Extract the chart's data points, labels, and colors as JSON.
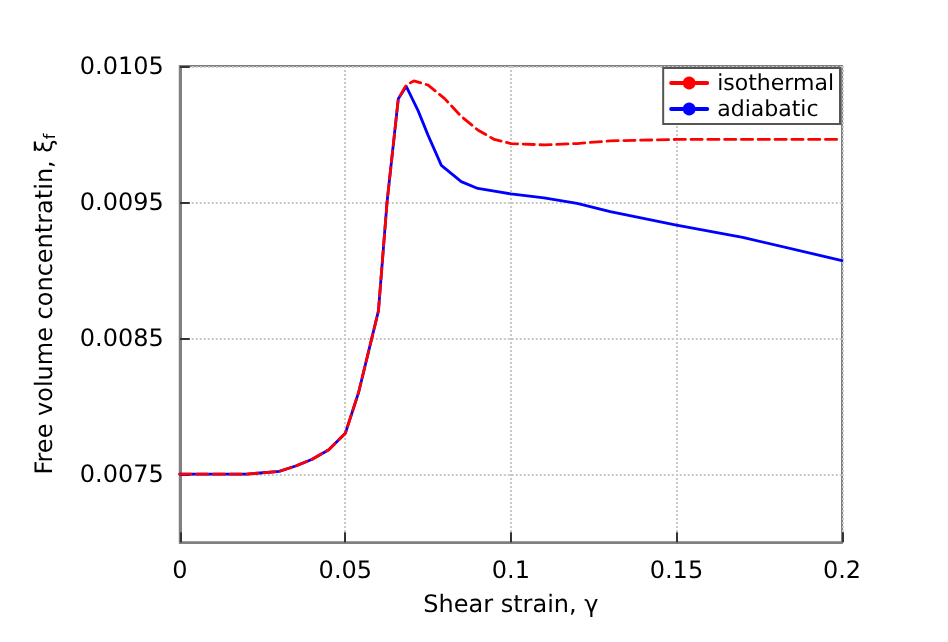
{
  "chart_data": {
    "type": "line",
    "xlabel": "Shear strain, γ",
    "ylabel": "Free volume concentratin, ξ$_{f}$",
    "xlim": [
      0,
      0.2
    ],
    "xticks": [
      0,
      0.05,
      0.1,
      0.15,
      0.2
    ],
    "ylim": [
      0.007,
      0.0105
    ],
    "yticks": [
      0.0075,
      0.0085,
      0.0095,
      0.0105
    ],
    "grid": true,
    "legend": "top right",
    "marker": "none",
    "series": [
      {
        "name": "isothermal",
        "color": "#ff0000",
        "line_style": "dashed",
        "x": [
          0,
          0.01,
          0.02,
          0.03,
          0.035,
          0.04,
          0.045,
          0.05,
          0.054,
          0.058,
          0.06,
          0.0626,
          0.066,
          0.0684,
          0.0707,
          0.075,
          0.08,
          0.085,
          0.09,
          0.095,
          0.1,
          0.11,
          0.12,
          0.13,
          0.15,
          0.17,
          0.2
        ],
        "values": [
          0.0075,
          0.0075,
          0.0075,
          0.00752,
          0.00756,
          0.00761,
          0.00768,
          0.0078,
          0.0081,
          0.0085,
          0.0087,
          0.0095,
          0.01026,
          0.01036,
          0.01039,
          0.01036,
          0.01026,
          0.01013,
          0.01003,
          0.00996,
          0.00993,
          0.00992,
          0.00993,
          0.00995,
          0.00996,
          0.00996,
          0.00996
        ]
      },
      {
        "name": "adiabatic",
        "color": "#0000ff",
        "line_style": "solid",
        "x": [
          0,
          0.01,
          0.02,
          0.03,
          0.035,
          0.04,
          0.045,
          0.05,
          0.054,
          0.058,
          0.06,
          0.0626,
          0.066,
          0.0684,
          0.072,
          0.075,
          0.079,
          0.085,
          0.09,
          0.095,
          0.1,
          0.11,
          0.12,
          0.13,
          0.15,
          0.17,
          0.2
        ],
        "values": [
          0.0075,
          0.0075,
          0.0075,
          0.00752,
          0.00756,
          0.00761,
          0.00768,
          0.0078,
          0.0081,
          0.0085,
          0.0087,
          0.0095,
          0.01026,
          0.01035,
          0.01017,
          0.00999,
          0.00977,
          0.00965,
          0.0096,
          0.00958,
          0.00956,
          0.00953,
          0.00949,
          0.00943,
          0.00933,
          0.00924,
          0.00907
        ]
      }
    ]
  }
}
